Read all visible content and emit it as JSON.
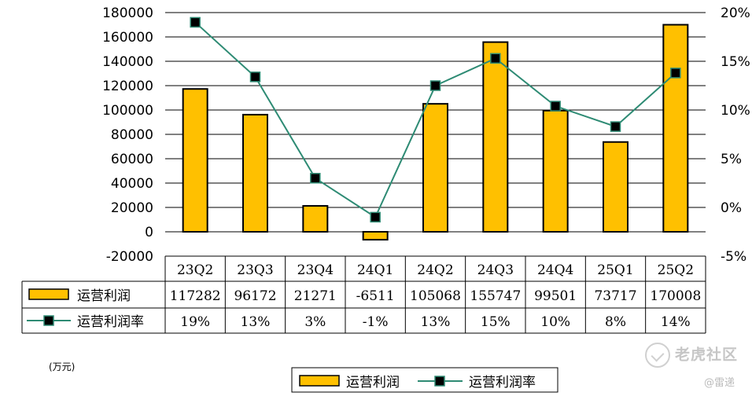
{
  "chart_data": {
    "type": "bar",
    "categories": [
      "23Q2",
      "23Q3",
      "23Q4",
      "24Q1",
      "24Q2",
      "24Q3",
      "24Q4",
      "25Q1",
      "25Q2"
    ],
    "series": [
      {
        "name": "运营利润",
        "type": "bar",
        "axis": "left",
        "values": [
          117282,
          96172,
          21271,
          -6511,
          105068,
          155747,
          99501,
          73717,
          170008
        ],
        "labels": [
          "117282",
          "96172",
          "21271",
          "-6511",
          "105068",
          "155747",
          "99501",
          "73717",
          "170008"
        ],
        "color": "#ffc000"
      },
      {
        "name": "运营利润率",
        "type": "line",
        "axis": "right",
        "values": [
          19,
          13,
          3,
          -1,
          13,
          15,
          10,
          8,
          14
        ],
        "plotted": [
          19.0,
          13.4,
          3.0,
          -1.0,
          12.5,
          15.3,
          10.4,
          8.3,
          13.8
        ],
        "labels": [
          "19%",
          "13%",
          "3%",
          "-1%",
          "13%",
          "15%",
          "10%",
          "8%",
          "14%"
        ],
        "color": "#2e8b74"
      }
    ],
    "ylim_left": [
      -20000,
      180000
    ],
    "yticks_left": [
      "-20000",
      "0",
      "20000",
      "40000",
      "60000",
      "80000",
      "100000",
      "120000",
      "140000",
      "160000",
      "180000"
    ],
    "ylim_right": [
      -5,
      20
    ],
    "yticks_right": [
      "-5%",
      "0%",
      "5%",
      "10%",
      "15%",
      "20%"
    ],
    "grid": true,
    "legend": "bottom-center",
    "unit_label": "(万元)"
  },
  "watermark": {
    "text": "老虎社区",
    "credit": "@雷递"
  }
}
